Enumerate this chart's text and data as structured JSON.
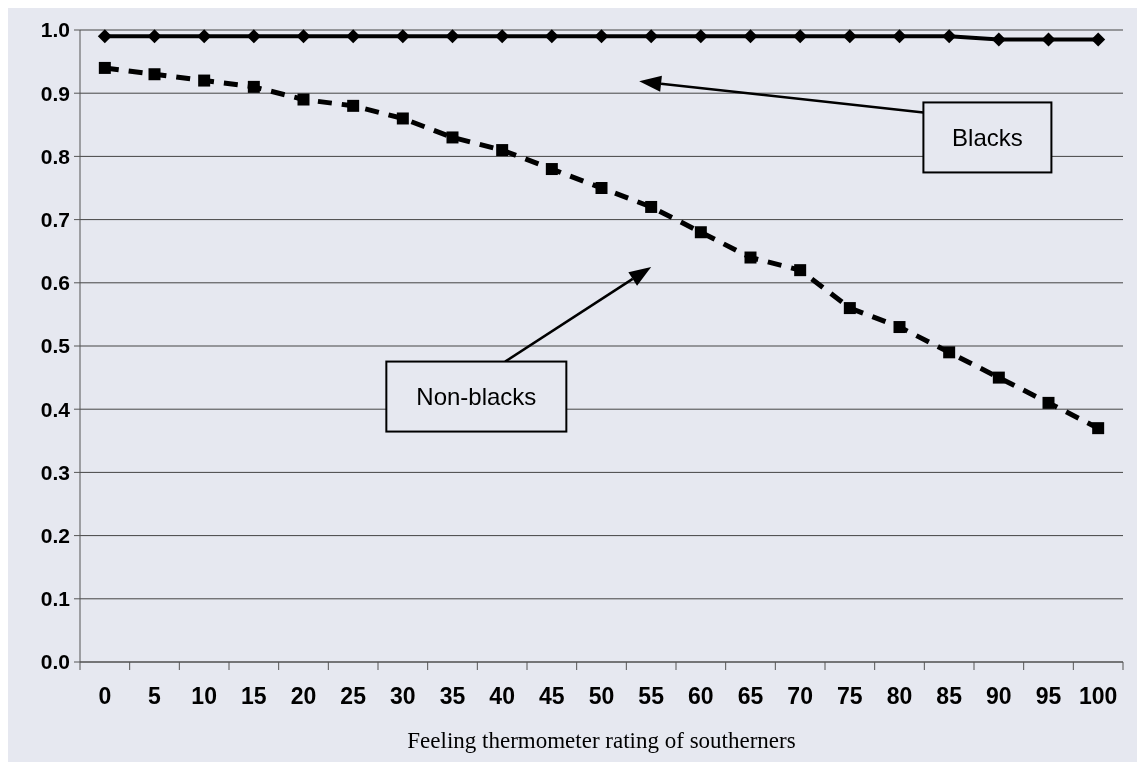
{
  "chart_data": {
    "type": "line",
    "xlabel": "Feeling thermometer rating of southerners",
    "categories": [
      "0",
      "5",
      "10",
      "15",
      "20",
      "25",
      "30",
      "35",
      "40",
      "45",
      "50",
      "55",
      "60",
      "65",
      "70",
      "75",
      "80",
      "85",
      "90",
      "95",
      "100"
    ],
    "series": [
      {
        "name": "Blacks",
        "color": "#000000",
        "marker": "diamond",
        "line_style": "solid",
        "values": [
          0.99,
          0.99,
          0.99,
          0.99,
          0.99,
          0.99,
          0.99,
          0.99,
          0.99,
          0.99,
          0.99,
          0.99,
          0.99,
          0.99,
          0.99,
          0.99,
          0.99,
          0.99,
          0.985,
          0.985,
          0.985
        ]
      },
      {
        "name": "Non-blacks",
        "color": "#000000",
        "marker": "square",
        "line_style": "dashed",
        "values": [
          0.94,
          0.93,
          0.92,
          0.91,
          0.89,
          0.88,
          0.86,
          0.83,
          0.81,
          0.78,
          0.75,
          0.72,
          0.68,
          0.64,
          0.62,
          0.56,
          0.53,
          0.49,
          0.45,
          0.41,
          0.37
        ]
      }
    ],
    "ylim": [
      0,
      1
    ],
    "yticks": [
      {
        "value": 0,
        "label": "0.0"
      },
      {
        "value": 0.1,
        "label": "0.1"
      },
      {
        "value": 0.2,
        "label": "0.2"
      },
      {
        "value": 0.3,
        "label": "0.3"
      },
      {
        "value": 0.4,
        "label": "0.4"
      },
      {
        "value": 0.5,
        "label": "0.5"
      },
      {
        "value": 0.6,
        "label": "0.6"
      },
      {
        "value": 0.7,
        "label": "0.7"
      },
      {
        "value": 0.8,
        "label": "0.8"
      },
      {
        "value": 0.9,
        "label": "0.9"
      },
      {
        "value": 1,
        "label": "1.0"
      }
    ],
    "grid": "y"
  }
}
